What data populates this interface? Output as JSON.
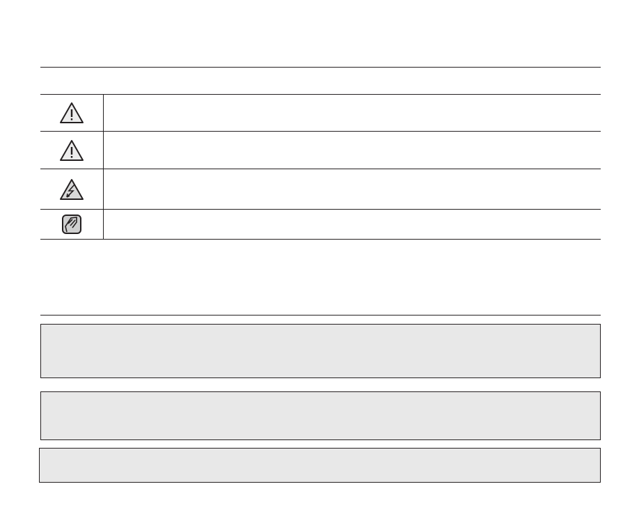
{
  "icons": [
    "warning-icon",
    "caution-icon",
    "electric-shock-icon",
    "note-icon"
  ],
  "colors": {
    "line": "#231f20",
    "box_fill": "#e8e8e8",
    "icon_fill": "#d9d9d9"
  }
}
